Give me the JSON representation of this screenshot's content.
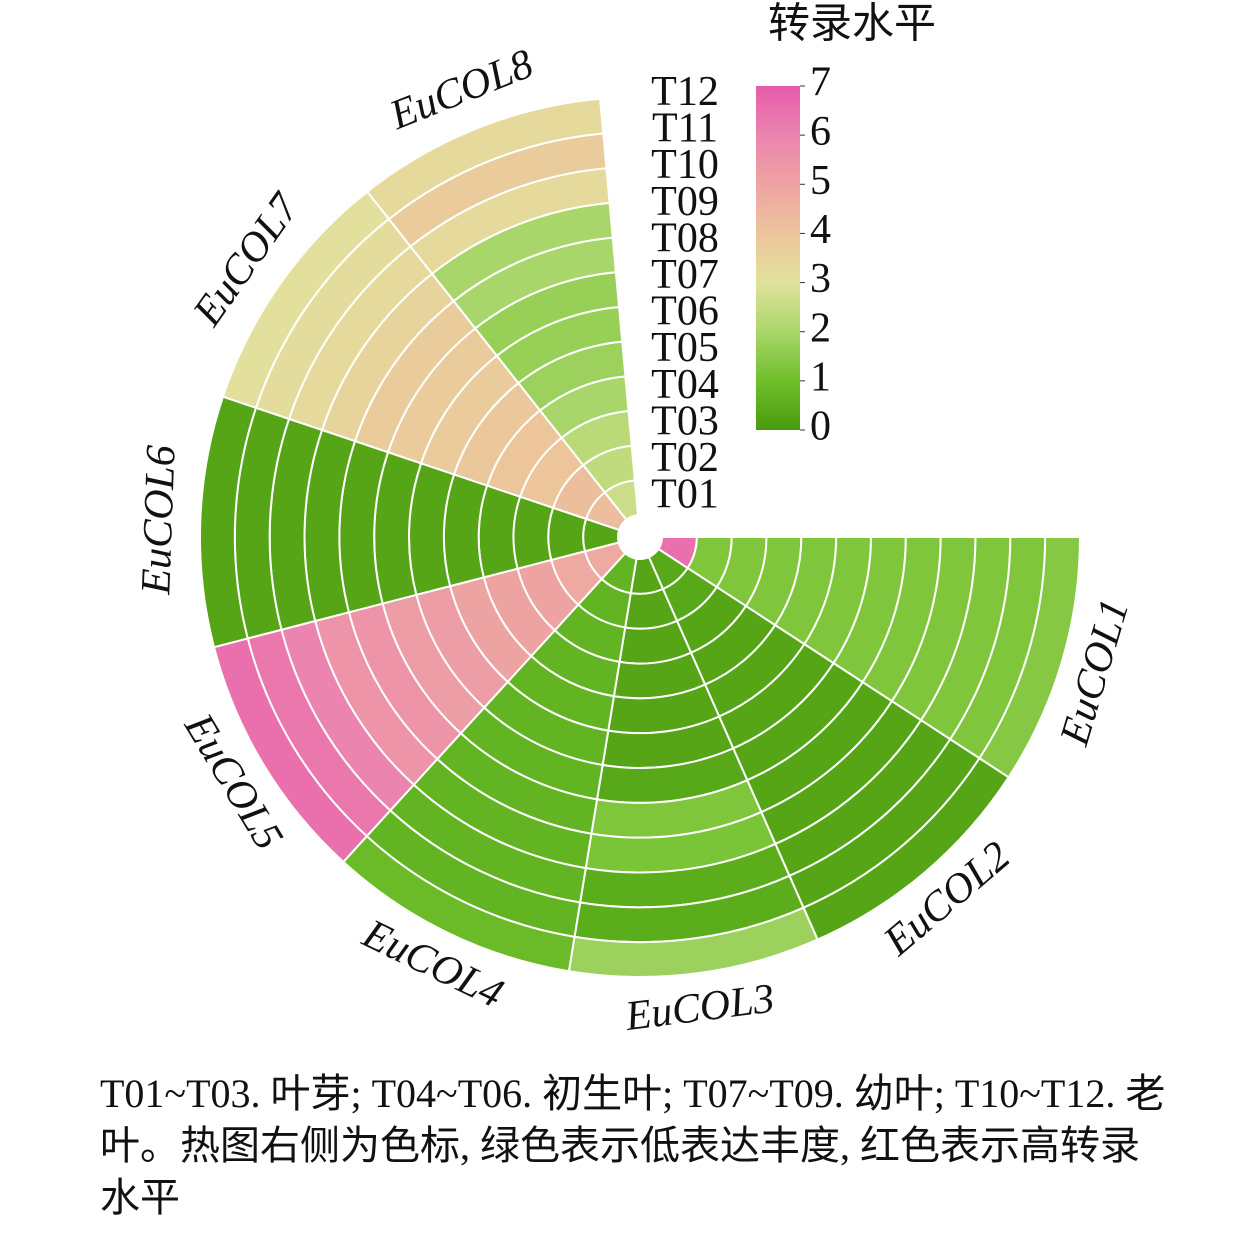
{
  "chart_data": {
    "type": "circular_heatmap",
    "colorbar_title": "转录水平",
    "categories": [
      "EuCOL1",
      "EuCOL2",
      "EuCOL3",
      "EuCOL4",
      "EuCOL5",
      "EuCOL6",
      "EuCOL7",
      "EuCOL8"
    ],
    "rows": [
      "T01",
      "T02",
      "T03",
      "T04",
      "T05",
      "T06",
      "T07",
      "T08",
      "T09",
      "T10",
      "T11",
      "T12"
    ],
    "values": [
      [
        6.5,
        1.3,
        1.3,
        1.3,
        1.3,
        1.3,
        1.3,
        1.3,
        1.3,
        1.3,
        1.3,
        1.4
      ],
      [
        0.4,
        0.4,
        0.3,
        0.3,
        0.3,
        0.3,
        0.3,
        0.3,
        0.3,
        0.3,
        0.3,
        0.3
      ],
      [
        0.3,
        0.3,
        0.3,
        0.3,
        0.3,
        0.3,
        0.4,
        1.3,
        1.2,
        0.5,
        0.5,
        1.8
      ],
      [
        0.7,
        0.7,
        0.7,
        0.7,
        0.7,
        0.7,
        0.7,
        0.7,
        0.7,
        0.7,
        0.7,
        0.9
      ],
      [
        4.8,
        4.8,
        5,
        5,
        5,
        5.2,
        5.2,
        5.5,
        5.5,
        6,
        6.3,
        6.5
      ],
      [
        0.3,
        0.3,
        0.3,
        0.3,
        0.3,
        0.3,
        0.3,
        0.3,
        0.3,
        0.3,
        0.3,
        0.3
      ],
      [
        4.2,
        4.2,
        4,
        4,
        3.9,
        3.8,
        3.8,
        3.8,
        3.5,
        3.3,
        3.2,
        3.1
      ],
      [
        2.6,
        2.4,
        2.3,
        2,
        1.8,
        1.7,
        1.7,
        2,
        2,
        3.3,
        3.8,
        3.3
      ]
    ],
    "clim": [
      0,
      7
    ],
    "cticks": [
      0,
      1,
      2,
      3,
      4,
      5,
      6,
      7
    ],
    "colorscale": [
      "#4a9a0e",
      "#6ebf2a",
      "#a9d66a",
      "#e2e29c",
      "#ecc59b",
      "#eea3a3",
      "#eb84ae",
      "#e65caa"
    ]
  },
  "caption": "T01~T03. 叶芽; T04~T06. 初生叶; T07~T09. 幼叶; T10~T12. 老叶。热图右侧为色标, 绿色表示低表达丰度, 红色表示高转录水平"
}
